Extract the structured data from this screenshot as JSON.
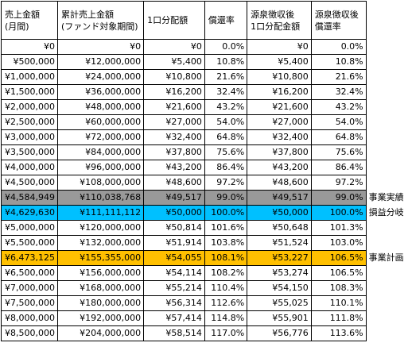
{
  "headers": [
    "売上金額\n(月間)",
    "累計売上金額\n(ファンド対象期間)",
    "1口分配額",
    "償還率",
    "源泉徴収後\n1口分配金額",
    "源泉徴収後\n償還率"
  ],
  "rows": [
    {
      "cells": [
        "¥0",
        "¥0",
        "¥0",
        "0.0%",
        "¥0",
        "0.0%"
      ],
      "note": "",
      "highlight": ""
    },
    {
      "cells": [
        "¥500,000",
        "¥12,000,000",
        "¥5,400",
        "10.8%",
        "¥5,400",
        "10.8%"
      ],
      "note": "",
      "highlight": ""
    },
    {
      "cells": [
        "¥1,000,000",
        "¥24,000,000",
        "¥10,800",
        "21.6%",
        "¥10,800",
        "21.6%"
      ],
      "note": "",
      "highlight": ""
    },
    {
      "cells": [
        "¥1,500,000",
        "¥36,000,000",
        "¥16,200",
        "32.4%",
        "¥16,200",
        "32.4%"
      ],
      "note": "",
      "highlight": ""
    },
    {
      "cells": [
        "¥2,000,000",
        "¥48,000,000",
        "¥21,600",
        "43.2%",
        "¥21,600",
        "43.2%"
      ],
      "note": "",
      "highlight": ""
    },
    {
      "cells": [
        "¥2,500,000",
        "¥60,000,000",
        "¥27,000",
        "54.0%",
        "¥27,000",
        "54.0%"
      ],
      "note": "",
      "highlight": ""
    },
    {
      "cells": [
        "¥3,000,000",
        "¥72,000,000",
        "¥32,400",
        "64.8%",
        "¥32,400",
        "64.8%"
      ],
      "note": "",
      "highlight": ""
    },
    {
      "cells": [
        "¥3,500,000",
        "¥84,000,000",
        "¥37,800",
        "75.6%",
        "¥37,800",
        "75.6%"
      ],
      "note": "",
      "highlight": ""
    },
    {
      "cells": [
        "¥4,000,000",
        "¥96,000,000",
        "¥43,200",
        "86.4%",
        "¥43,200",
        "86.4%"
      ],
      "note": "",
      "highlight": ""
    },
    {
      "cells": [
        "¥4,500,000",
        "¥108,000,000",
        "¥48,600",
        "97.2%",
        "¥48,600",
        "97.2%"
      ],
      "note": "",
      "highlight": ""
    },
    {
      "cells": [
        "¥4,584,949",
        "¥110,038,768",
        "¥49,517",
        "99.0%",
        "¥49,517",
        "99.0%"
      ],
      "note": "事業実績",
      "highlight": "gray"
    },
    {
      "cells": [
        "¥4,629,630",
        "¥111,111,112",
        "¥50,000",
        "100.0%",
        "¥50,000",
        "100.0%"
      ],
      "note": "損益分岐",
      "highlight": "cyan"
    },
    {
      "cells": [
        "¥5,000,000",
        "¥120,000,000",
        "¥50,814",
        "101.6%",
        "¥50,648",
        "101.3%"
      ],
      "note": "",
      "highlight": ""
    },
    {
      "cells": [
        "¥5,500,000",
        "¥132,000,000",
        "¥51,914",
        "103.8%",
        "¥51,524",
        "103.0%"
      ],
      "note": "",
      "highlight": ""
    },
    {
      "cells": [
        "¥6,473,125",
        "¥155,355,000",
        "¥54,055",
        "108.1%",
        "¥53,227",
        "106.5%"
      ],
      "note": "事業計画",
      "highlight": "gold"
    },
    {
      "cells": [
        "¥6,500,000",
        "¥156,000,000",
        "¥54,114",
        "108.2%",
        "¥53,274",
        "106.5%"
      ],
      "note": "",
      "highlight": ""
    },
    {
      "cells": [
        "¥7,000,000",
        "¥168,000,000",
        "¥55,214",
        "110.4%",
        "¥54,150",
        "108.3%"
      ],
      "note": "",
      "highlight": ""
    },
    {
      "cells": [
        "¥7,500,000",
        "¥180,000,000",
        "¥56,314",
        "112.6%",
        "¥55,025",
        "110.1%"
      ],
      "note": "",
      "highlight": ""
    },
    {
      "cells": [
        "¥8,000,000",
        "¥192,000,000",
        "¥57,414",
        "114.8%",
        "¥55,901",
        "111.8%"
      ],
      "note": "",
      "highlight": ""
    },
    {
      "cells": [
        "¥8,500,000",
        "¥204,000,000",
        "¥58,514",
        "117.0%",
        "¥56,776",
        "113.6%"
      ],
      "note": "",
      "highlight": ""
    }
  ],
  "colors": {
    "gray": "#999999",
    "cyan": "#00c0ff",
    "gold": "#ffc000"
  }
}
